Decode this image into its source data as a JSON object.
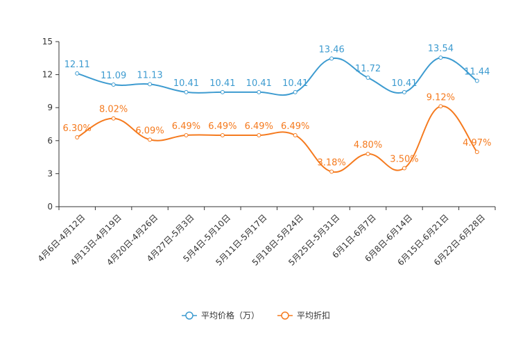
{
  "chart_data": {
    "type": "line",
    "title": "",
    "xlabel": "",
    "ylabel": "",
    "ylim": [
      0,
      15
    ],
    "yticks": [
      0,
      3,
      6,
      9,
      12,
      15
    ],
    "grid": false,
    "legend_position": "bottom-center",
    "categories": [
      "4月6日-4月12日",
      "4月13日-4月19日",
      "4月20日-4月26日",
      "4月27日-5月3日",
      "5月4日-5月10日",
      "5月11日-5月17日",
      "5月18日-5月24日",
      "5月25日-5月31日",
      "6月1日-6月7日",
      "6月8日-6月14日",
      "6月15日-6月21日",
      "6月22日-6月28日"
    ],
    "series": [
      {
        "name": "平均价格（万）",
        "color": "#3d9bd0",
        "values": [
          12.11,
          11.09,
          11.13,
          10.41,
          10.41,
          10.41,
          10.41,
          13.46,
          11.72,
          10.41,
          13.54,
          11.44
        ],
        "labels": [
          "12.11",
          "11.09",
          "11.13",
          "10.41",
          "10.41",
          "10.41",
          "10.41",
          "13.46",
          "11.72",
          "10.41",
          "13.54",
          "11.44"
        ]
      },
      {
        "name": "平均折扣",
        "color": "#f57a1e",
        "values": [
          6.3,
          8.02,
          6.09,
          6.49,
          6.49,
          6.49,
          6.49,
          3.18,
          4.8,
          3.5,
          9.12,
          4.97
        ],
        "labels": [
          "6.30%",
          "8.02%",
          "6.09%",
          "6.49%",
          "6.49%",
          "6.49%",
          "6.49%",
          "3.18%",
          "4.80%",
          "3.50%",
          "9.12%",
          "4.97%"
        ]
      }
    ]
  }
}
